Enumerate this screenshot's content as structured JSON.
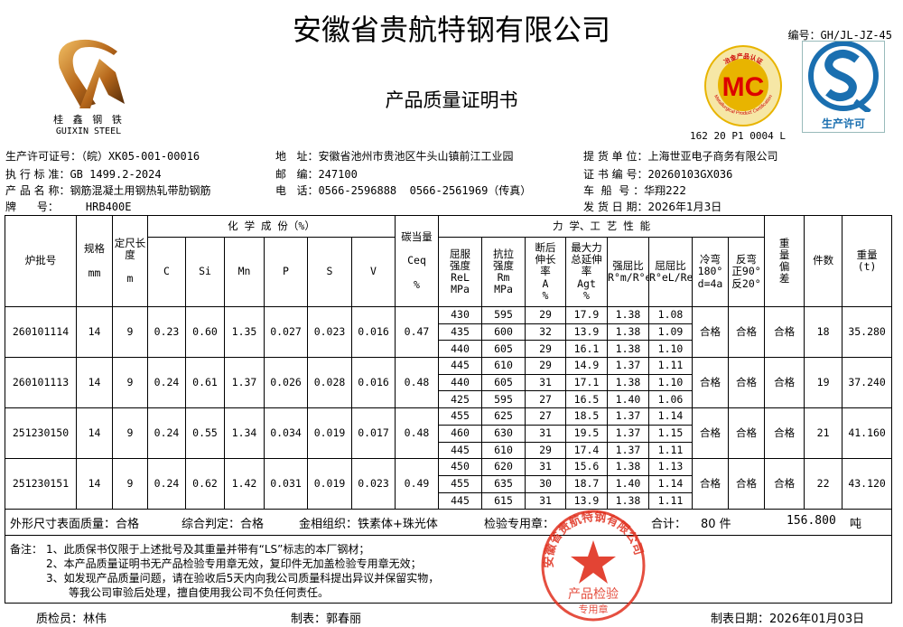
{
  "header": {
    "company": "安徽省贵航特钢有限公司",
    "title": "产品质量证明书",
    "doc_no": "编号：GH/JL-JZ-45",
    "logo_cn": "桂 鑫 钢 铁",
    "logo_en": "GUIXIN  STEEL",
    "mc_logo_text": "MC",
    "mc_ring_top": "冶金产品认证",
    "mc_ring_en": "Metallurgical Product Certification",
    "mc_code": "162 20 P1 0004 L",
    "qs_label": "生产许可",
    "colors": {
      "stamp": "#e0301e",
      "qs_blue": "#1a6fb0",
      "mc_gold": "#e8b400"
    }
  },
  "info": {
    "license": {
      "label": "生产许可证号：",
      "value": "（皖）XK05-001-00016"
    },
    "standard": {
      "label": "执 行 标 准：",
      "value": "GB 1499.2-2024"
    },
    "product": {
      "label": "产 品 名 称：",
      "value": "钢筋混凝土用钢热轧带肋钢筋"
    },
    "grade": {
      "label": "牌      号：",
      "value": "HRB400E"
    },
    "address": {
      "label": "地   址：",
      "value": "安徽省池州市贵池区牛头山镇前江工业园"
    },
    "postcode": {
      "label": "邮   编：",
      "value": "247100"
    },
    "phone": {
      "label": "电   话：",
      "value": "0566-2596888  0566-2561969（传真）"
    },
    "consignee": {
      "label": "提 货 单 位：",
      "value": "上海世亚电子商务有限公司"
    },
    "cert_no": {
      "label": "证 书 编 号：",
      "value": "20260103GX036"
    },
    "vehicle": {
      "label": "车  船  号 ：",
      "value": "华翔222"
    },
    "ship_date": {
      "label": "发 货 日 期：",
      "value": "2026年1月3日"
    }
  },
  "table": {
    "headers": {
      "batch": "炉批号",
      "spec": "规格",
      "spec_unit": "mm",
      "length": "定尺长度",
      "length_unit": "m",
      "chem_group": "化 学 成 份（%）",
      "c": "C",
      "si": "Si",
      "mn": "Mn",
      "p": "P",
      "s": "S",
      "v": "V",
      "ceq": "碳当量",
      "ceq_sym": "Ceq",
      "ceq_unit": "%",
      "mech_group": "力 学、工 艺 性 能",
      "rel": "屈服强度",
      "rel_sym": "ReL",
      "rel_unit": "MPa",
      "rm": "抗拉强度",
      "rm_sym": "Rm",
      "rm_unit": "MPa",
      "a": "断后伸长率",
      "a_sym": "A",
      "a_unit": "%",
      "agt": "最大力总延伸率",
      "agt_sym": "Agt",
      "agt_unit": "%",
      "ratio1": "强屈比",
      "ratio1_sym": "R°m/R°eL",
      "ratio2": "屈屈比",
      "ratio2_sym": "R°eL/ReL",
      "cold_bend": "冷弯",
      "cold_bend_sub": "180° d=4a",
      "rebend": "反弯",
      "rebend_sub": "正90° 反20°",
      "weight_dev": "重量偏差",
      "pieces": "件数",
      "weight": "重量",
      "weight_unit": "(t)"
    },
    "rows": [
      {
        "batch": "260101114",
        "spec": "14",
        "length": "9",
        "c": "0.23",
        "si": "0.60",
        "mn": "1.35",
        "p": "0.027",
        "s": "0.023",
        "v": "0.016",
        "ceq": "0.47",
        "mech": [
          [
            "430",
            "595",
            "29",
            "17.9",
            "1.38",
            "1.08"
          ],
          [
            "435",
            "600",
            "32",
            "13.9",
            "1.38",
            "1.09"
          ],
          [
            "440",
            "605",
            "29",
            "16.1",
            "1.38",
            "1.10"
          ]
        ],
        "cold_bend": "合格",
        "rebend": "合格",
        "weight_dev": "合格",
        "pieces": "18",
        "weight": "35.280"
      },
      {
        "batch": "260101113",
        "spec": "14",
        "length": "9",
        "c": "0.24",
        "si": "0.61",
        "mn": "1.37",
        "p": "0.026",
        "s": "0.028",
        "v": "0.016",
        "ceq": "0.48",
        "mech": [
          [
            "445",
            "610",
            "29",
            "14.9",
            "1.37",
            "1.11"
          ],
          [
            "440",
            "605",
            "31",
            "17.1",
            "1.38",
            "1.10"
          ],
          [
            "425",
            "595",
            "27",
            "16.5",
            "1.40",
            "1.06"
          ]
        ],
        "cold_bend": "合格",
        "rebend": "合格",
        "weight_dev": "合格",
        "pieces": "19",
        "weight": "37.240"
      },
      {
        "batch": "251230150",
        "spec": "14",
        "length": "9",
        "c": "0.24",
        "si": "0.55",
        "mn": "1.34",
        "p": "0.034",
        "s": "0.019",
        "v": "0.017",
        "ceq": "0.48",
        "mech": [
          [
            "455",
            "625",
            "27",
            "18.5",
            "1.37",
            "1.14"
          ],
          [
            "460",
            "630",
            "31",
            "19.5",
            "1.37",
            "1.15"
          ],
          [
            "445",
            "610",
            "29",
            "17.4",
            "1.37",
            "1.11"
          ]
        ],
        "cold_bend": "合格",
        "rebend": "合格",
        "weight_dev": "合格",
        "pieces": "21",
        "weight": "41.160"
      },
      {
        "batch": "251230151",
        "spec": "14",
        "length": "9",
        "c": "0.24",
        "si": "0.62",
        "mn": "1.42",
        "p": "0.031",
        "s": "0.019",
        "v": "0.023",
        "ceq": "0.49",
        "mech": [
          [
            "450",
            "620",
            "31",
            "15.6",
            "1.38",
            "1.13"
          ],
          [
            "455",
            "635",
            "30",
            "18.7",
            "1.40",
            "1.14"
          ],
          [
            "445",
            "615",
            "31",
            "13.9",
            "1.38",
            "1.11"
          ]
        ],
        "cold_bend": "合格",
        "rebend": "合格",
        "weight_dev": "合格",
        "pieces": "22",
        "weight": "43.120"
      }
    ]
  },
  "summary": {
    "surface": "外形尺寸表面质量：合格",
    "judgement": "综合判定：合格",
    "structure": "金相组织：铁素体+珠光体",
    "stamp_label": "检验专用章：",
    "total_label": "合计：",
    "total_pieces": "80 件",
    "total_weight": "156.800",
    "weight_unit": "吨"
  },
  "notes": {
    "label": "备注：",
    "items": [
      "1、此质保书仅限于上述批号及其重量并带有“LS”标志的本厂钢材；",
      "2、本产品质量证明书无产品检验专用章无效，复印件无加盖检验专用章无效；",
      "3、如发现产品质量问题，请在验收后5天内向我公司质量科提出异议并保留实物，",
      "等我公司审验后处理，擅自使用我公司不负任何责任。"
    ]
  },
  "stamp": {
    "ring": "安徽省贵航特钢有限公司",
    "line1": "产品检验",
    "line2": "专用章"
  },
  "footer": {
    "inspector": "质检员：林伟",
    "preparer": "制表：郭春丽",
    "date": "制表日期：2026年01月03日"
  }
}
